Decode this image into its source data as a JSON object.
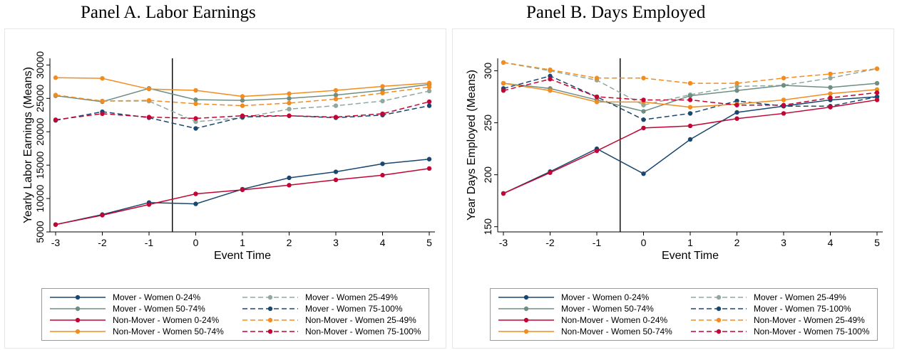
{
  "chart_data": [
    {
      "type": "line",
      "title": "Panel A. Labor Earnings",
      "xlabel": "Event Time",
      "ylabel": "Yearly Labor Earnings (Means)",
      "x": [
        -3,
        -2,
        -1,
        0,
        1,
        2,
        3,
        4,
        5
      ],
      "xlim": [
        -3,
        5
      ],
      "ylim": [
        5000,
        31000
      ],
      "yticks": [
        5000,
        10000,
        15000,
        20000,
        25000,
        30000
      ],
      "event_line_x": -0.5,
      "grid": false,
      "legend_position": "bottom",
      "series": [
        {
          "name": "Mover - Women 0-24%",
          "color": "#1a476f",
          "dash": "solid",
          "values": [
            6100,
            7600,
            9400,
            9200,
            11400,
            13100,
            14000,
            15200,
            15900
          ]
        },
        {
          "name": "Mover - Women 25-49%",
          "color": "#90a8a0",
          "dash": "dashed",
          "values": [
            25400,
            24600,
            24600,
            21500,
            22100,
            23400,
            23900,
            24600,
            26100
          ]
        },
        {
          "name": "Mover - Women 50-74%",
          "color": "#6e8e84",
          "dash": "solid",
          "values": [
            25400,
            24500,
            26500,
            24800,
            24700,
            25000,
            25500,
            26200,
            27100
          ]
        },
        {
          "name": "Mover - Women 75-100%",
          "color": "#1a476f",
          "dash": "dashed",
          "values": [
            21700,
            23000,
            22100,
            20500,
            22200,
            22400,
            22100,
            22500,
            23900
          ]
        },
        {
          "name": "Non-Mover - Women 0-24%",
          "color": "#c10534",
          "dash": "solid",
          "values": [
            6100,
            7500,
            9100,
            10700,
            11300,
            12000,
            12800,
            13500,
            14500
          ]
        },
        {
          "name": "Non-Mover - Women 25-49%",
          "color": "#f28c1e",
          "dash": "dashed",
          "values": [
            25500,
            24600,
            24700,
            24200,
            23900,
            24300,
            24900,
            25800,
            26700
          ]
        },
        {
          "name": "Non-Mover - Women 50-74%",
          "color": "#f28c1e",
          "dash": "solid",
          "values": [
            28100,
            28000,
            26400,
            26200,
            25300,
            25700,
            26200,
            26800,
            27300
          ]
        },
        {
          "name": "Non-Mover - Women 75-100%",
          "color": "#c10534",
          "dash": "dashed",
          "values": [
            21800,
            22700,
            22200,
            22000,
            22400,
            22400,
            22200,
            22700,
            24500
          ]
        }
      ]
    },
    {
      "type": "line",
      "title": "Panel B. Days Employed",
      "xlabel": "Event Time",
      "ylabel": "Year Days Employed (Means)",
      "x": [
        -3,
        -2,
        -1,
        0,
        1,
        2,
        3,
        4,
        5
      ],
      "xlim": [
        -3,
        5
      ],
      "ylim": [
        145,
        312
      ],
      "yticks": [
        150,
        200,
        250,
        300
      ],
      "event_line_x": -0.5,
      "grid": false,
      "legend_position": "bottom",
      "series": [
        {
          "name": "Mover - Women 0-24%",
          "color": "#1a476f",
          "dash": "solid",
          "values": [
            182,
            203,
            225,
            201,
            234,
            260,
            266,
            272,
            275
          ]
        },
        {
          "name": "Mover - Women 25-49%",
          "color": "#90a8a0",
          "dash": "dashed",
          "values": [
            308,
            300,
            291,
            267,
            277,
            285,
            286,
            293,
            302
          ]
        },
        {
          "name": "Mover - Women 50-74%",
          "color": "#6e8e84",
          "dash": "solid",
          "values": [
            288,
            283,
            272,
            261,
            276,
            281,
            286,
            284,
            288
          ]
        },
        {
          "name": "Mover - Women 75-100%",
          "color": "#1a476f",
          "dash": "dashed",
          "values": [
            283,
            295,
            275,
            253,
            259,
            271,
            266,
            266,
            275
          ]
        },
        {
          "name": "Non-Mover - Women 0-24%",
          "color": "#c10534",
          "dash": "solid",
          "values": [
            182,
            202,
            223,
            245,
            247,
            254,
            259,
            265,
            272
          ]
        },
        {
          "name": "Non-Mover - Women 25-49%",
          "color": "#f28c1e",
          "dash": "dashed",
          "values": [
            308,
            301,
            293,
            293,
            288,
            288,
            293,
            297,
            302
          ]
        },
        {
          "name": "Non-Mover - Women 50-74%",
          "color": "#f28c1e",
          "dash": "solid",
          "values": [
            288,
            281,
            270,
            270,
            265,
            268,
            272,
            278,
            282
          ]
        },
        {
          "name": "Non-Mover - Women 75-100%",
          "color": "#c10534",
          "dash": "dashed",
          "values": [
            281,
            292,
            275,
            272,
            272,
            267,
            267,
            274,
            279
          ]
        }
      ]
    }
  ]
}
